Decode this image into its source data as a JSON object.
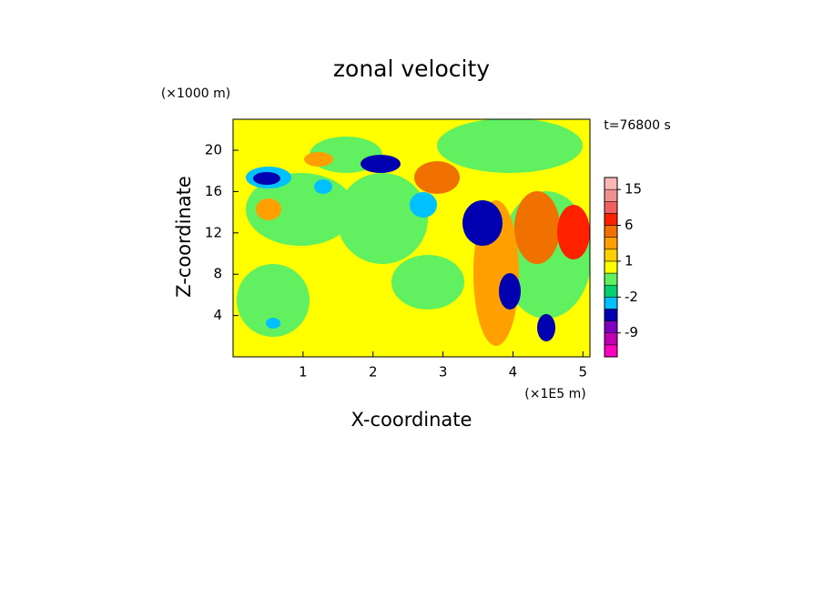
{
  "chart_data": {
    "type": "contour",
    "title": "zonal velocity",
    "x_label": "X-coordinate",
    "y_label": "Z-coordinate",
    "x_unit": "(×1E5 m)",
    "y_unit": "(×1000 m)",
    "annotation": "t=76800 s",
    "xlim": [
      0,
      5.1
    ],
    "ylim": [
      0,
      23
    ],
    "xticks": [
      1,
      2,
      3,
      4,
      5
    ],
    "yticks": [
      4,
      8,
      12,
      16,
      20
    ],
    "colorbar": {
      "levels": [
        -15,
        -12,
        -9,
        -6,
        -3,
        -2,
        -1,
        0,
        1,
        2,
        3,
        6,
        9,
        12,
        15,
        18
      ],
      "colors": [
        "#ff00c0",
        "#c000b0",
        "#8000c0",
        "#0000b0",
        "#00c0ff",
        "#00d070",
        "#60f060",
        "#ffff00",
        "#ffd000",
        "#ffa000",
        "#f07000",
        "#ff2000",
        "#f06060",
        "#f09090",
        "#f8b8b8"
      ],
      "ticks": [
        15,
        6,
        1,
        -2,
        -9
      ]
    }
  }
}
